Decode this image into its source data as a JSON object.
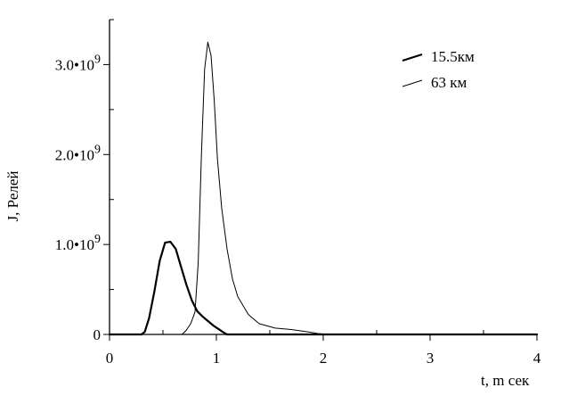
{
  "chart_data": {
    "type": "line",
    "xlabel": "t, m сек",
    "ylabel": "J, Релей",
    "xlim": [
      0,
      4
    ],
    "ylim": [
      0,
      3500000000.0
    ],
    "x_ticks": [
      {
        "value": 0,
        "label": "0"
      },
      {
        "value": 1,
        "label": "1"
      },
      {
        "value": 2,
        "label": "2"
      },
      {
        "value": 3,
        "label": "3"
      },
      {
        "value": 4,
        "label": "4"
      }
    ],
    "y_ticks": [
      {
        "value": 0,
        "mantissa": "0",
        "exponent": ""
      },
      {
        "value": 1000000000.0,
        "mantissa": "1.0•10",
        "exponent": "9"
      },
      {
        "value": 2000000000.0,
        "mantissa": "2.0•10",
        "exponent": "9"
      },
      {
        "value": 3000000000.0,
        "mantissa": "3.0•10",
        "exponent": "9"
      }
    ],
    "grid": false,
    "legend_position": "top-right",
    "series": [
      {
        "name": "15.5км",
        "line_weight": "thick",
        "color": "#000000",
        "x": [
          0,
          0.3,
          0.33,
          0.37,
          0.42,
          0.47,
          0.52,
          0.57,
          0.62,
          0.67,
          0.72,
          0.77,
          0.82,
          0.87,
          0.92,
          0.97,
          1.02,
          1.07,
          1.1,
          4.0
        ],
        "y": [
          0,
          0,
          30000000.0,
          180000000.0,
          480000000.0,
          820000000.0,
          1020000000.0,
          1030000000.0,
          950000000.0,
          750000000.0,
          550000000.0,
          380000000.0,
          260000000.0,
          200000000.0,
          150000000.0,
          100000000.0,
          60000000.0,
          20000000.0,
          0,
          0
        ]
      },
      {
        "name": "63 км",
        "line_weight": "thin",
        "color": "#000000",
        "x": [
          0,
          0.68,
          0.72,
          0.76,
          0.8,
          0.83,
          0.86,
          0.89,
          0.92,
          0.95,
          0.98,
          1.01,
          1.05,
          1.1,
          1.15,
          1.2,
          1.3,
          1.4,
          1.55,
          1.7,
          1.85,
          1.95,
          2.05,
          4.0
        ],
        "y": [
          0,
          0,
          50000000.0,
          120000000.0,
          250000000.0,
          800000000.0,
          2000000000.0,
          2950000000.0,
          3250000000.0,
          3100000000.0,
          2600000000.0,
          1950000000.0,
          1400000000.0,
          950000000.0,
          620000000.0,
          420000000.0,
          220000000.0,
          120000000.0,
          70000000.0,
          55000000.0,
          30000000.0,
          10000000.0,
          0,
          0
        ]
      }
    ]
  }
}
